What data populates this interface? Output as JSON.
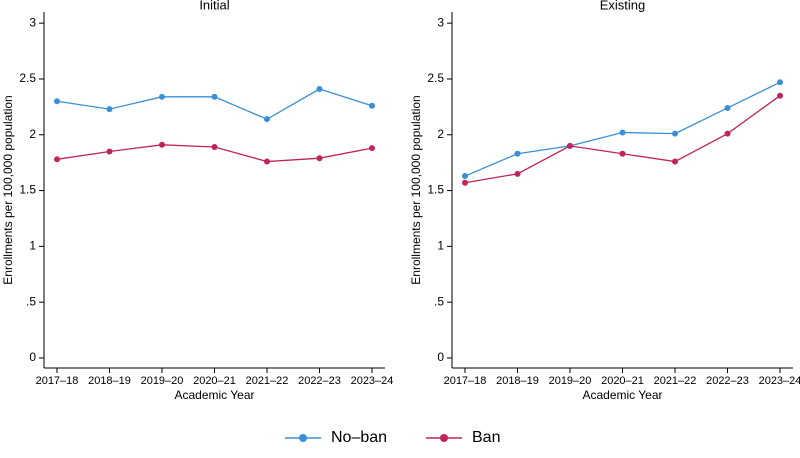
{
  "chart_data": [
    {
      "type": "line",
      "title": "Initial",
      "xlabel": "Academic Year",
      "ylabel": "Enrollments per 100,000 population",
      "categories": [
        "2017–18",
        "2018–19",
        "2019–20",
        "2020–21",
        "2021–22",
        "2022–23",
        "2023–24"
      ],
      "series": [
        {
          "name": "No–ban",
          "color": "#3a8fd6",
          "values": [
            2.3,
            2.23,
            2.34,
            2.34,
            2.14,
            2.41,
            2.26
          ]
        },
        {
          "name": "Ban",
          "color": "#c0245c",
          "values": [
            1.78,
            1.85,
            1.91,
            1.89,
            1.76,
            1.79,
            1.88
          ]
        }
      ],
      "ylim": [
        -0.09,
        3.1
      ],
      "yticks": [
        0,
        {
          "value": 0.5,
          "label": ".5"
        },
        1,
        1.5,
        2,
        2.5,
        3
      ],
      "legend": "bottom"
    },
    {
      "type": "line",
      "title": "Existing",
      "xlabel": "Academic Year",
      "ylabel": "Enrollments per 100,000 population",
      "categories": [
        "2017–18",
        "2018–19",
        "2019–20",
        "2020–21",
        "2021–22",
        "2022–23",
        "2023–24"
      ],
      "series": [
        {
          "name": "No–ban",
          "color": "#3a8fd6",
          "values": [
            1.63,
            1.83,
            1.9,
            2.02,
            2.01,
            2.24,
            2.47
          ]
        },
        {
          "name": "Ban",
          "color": "#c0245c",
          "values": [
            1.57,
            1.65,
            1.9,
            1.83,
            1.76,
            2.01,
            2.35
          ]
        }
      ],
      "ylim": [
        -0.09,
        3.1
      ],
      "yticks": [
        0,
        {
          "value": 0.5,
          "label": ".5"
        },
        1,
        1.5,
        2,
        2.5,
        3
      ],
      "legend": "bottom"
    }
  ]
}
